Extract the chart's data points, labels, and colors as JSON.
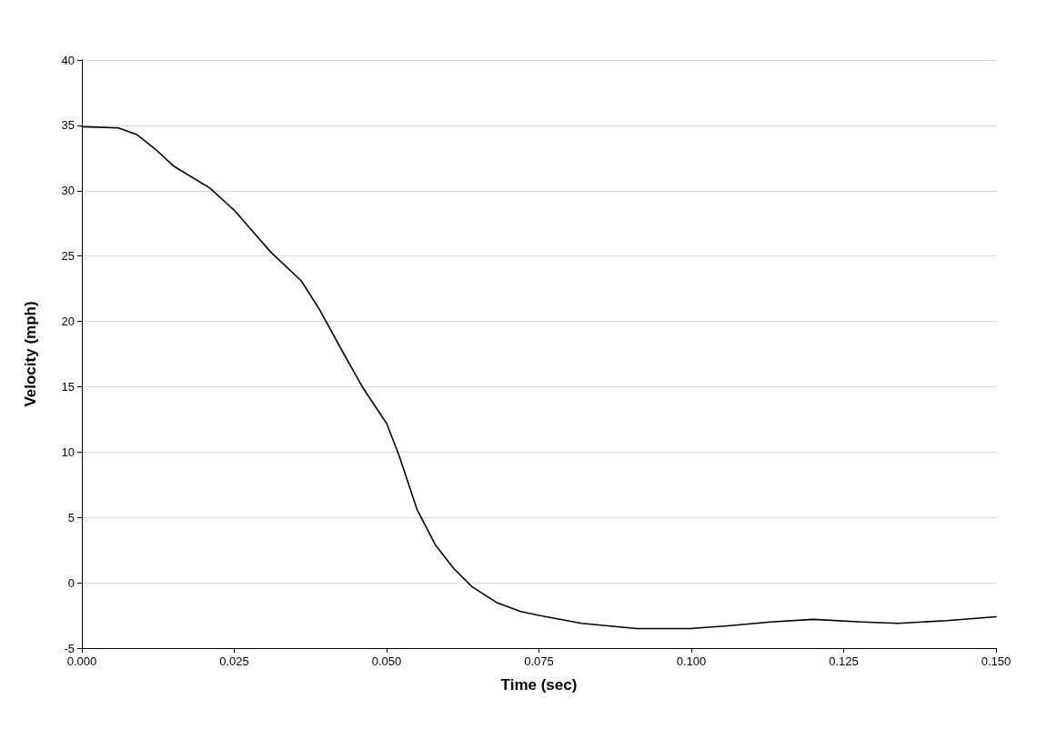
{
  "chart_data": {
    "type": "line",
    "xlabel": "Time (sec)",
    "ylabel": "Velocity (mph)",
    "x": [
      0,
      0.006,
      0.009,
      0.012,
      0.015,
      0.021,
      0.025,
      0.031,
      0.036,
      0.039,
      0.043,
      0.046,
      0.05,
      0.052,
      0.055,
      0.058,
      0.061,
      0.064,
      0.068,
      0.072,
      0.075,
      0.082,
      0.091,
      0.1,
      0.106,
      0.113,
      0.12,
      0.128,
      0.134,
      0.142,
      0.15
    ],
    "series": [
      {
        "color": "#000000",
        "values": [
          34.9,
          34.8,
          34.3,
          33.2,
          31.9,
          30.2,
          28.5,
          25.3,
          23.1,
          20.9,
          17.5,
          15.0,
          12.2,
          9.8,
          5.6,
          2.9,
          1.1,
          -0.3,
          -1.5,
          -2.2,
          -2.5,
          -3.1,
          -3.5,
          -3.5,
          -3.3,
          -3.0,
          -2.8,
          -3.0,
          -3.1,
          -2.9,
          -2.6
        ]
      }
    ],
    "xlim": [
      0,
      0.15
    ],
    "xticks": [
      {
        "value": 0,
        "label": "0.000"
      },
      {
        "value": 0.025,
        "label": "0.025"
      },
      {
        "value": 0.05,
        "label": "0.050"
      },
      {
        "value": 0.075,
        "label": "0.075"
      },
      {
        "value": 0.1,
        "label": "0.100"
      },
      {
        "value": 0.125,
        "label": "0.125"
      },
      {
        "value": 0.15,
        "label": "0.150"
      }
    ],
    "ylim": [
      -5,
      40
    ],
    "yticks": [
      -5,
      0,
      5,
      10,
      15,
      20,
      25,
      30,
      35,
      40
    ],
    "grid": "y",
    "marker": "none",
    "line_style": "solid"
  }
}
